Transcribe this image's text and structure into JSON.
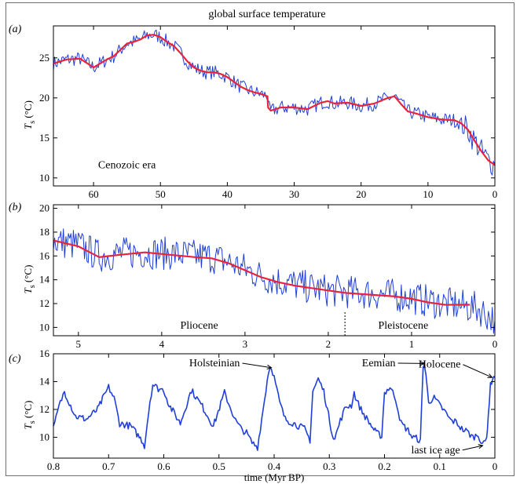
{
  "title": "global surface temperature",
  "colors": {
    "raw": "#1f3fd8",
    "smooth": "#e8243c",
    "axis": "#000000",
    "frame": "#6f6f6f"
  },
  "chart_data": [
    {
      "type": "line",
      "panel_label": "(a)",
      "title": "global surface temperature",
      "xlabel": "",
      "ylabel": "T_s (°C)",
      "ylabel_main": "T",
      "ylabel_sub": "s",
      "ylabel_unit": " (°C)",
      "xlim": [
        66,
        0
      ],
      "ylim": [
        9,
        29
      ],
      "xticks": [
        60,
        50,
        40,
        30,
        20,
        10,
        0
      ],
      "yticks": [
        10,
        15,
        20,
        25
      ],
      "grid": false,
      "annotations": [
        {
          "text": "Cenozoic era",
          "x": 55,
          "y": 11.2
        }
      ],
      "series": [
        {
          "role": "raw",
          "noise": 0.9,
          "x": [
            66,
            64,
            62,
            60,
            58,
            57,
            56,
            55,
            54,
            53,
            52,
            51,
            50,
            49,
            48,
            47,
            46,
            45,
            44,
            43,
            42,
            41,
            40,
            39,
            38,
            37,
            36,
            35,
            34,
            33.9,
            33.5,
            32,
            30,
            28,
            26,
            25,
            24,
            22,
            20,
            18,
            16,
            15,
            14,
            13,
            12,
            10,
            8,
            6,
            5,
            4,
            3,
            2,
            1,
            0
          ],
          "y": [
            24.3,
            24.8,
            24.9,
            23.8,
            24.8,
            25.2,
            26.0,
            26.8,
            27.0,
            27.3,
            27.8,
            27.9,
            27.6,
            27.0,
            26.5,
            25.6,
            24.6,
            23.8,
            23.4,
            23.2,
            23.2,
            23.0,
            22.6,
            22.0,
            21.4,
            21.0,
            20.7,
            20.5,
            20.2,
            18.8,
            18.4,
            18.8,
            18.8,
            18.6,
            19.4,
            19.6,
            19.3,
            19.4,
            19.0,
            19.3,
            20.0,
            20.2,
            19.2,
            18.3,
            18.1,
            17.6,
            17.3,
            17.2,
            16.8,
            16.0,
            14.6,
            13.3,
            12.2,
            11.6
          ]
        },
        {
          "role": "smooth",
          "x": [
            66,
            64,
            62,
            60,
            58,
            57,
            56,
            55,
            54,
            53,
            52,
            51,
            50,
            49,
            48,
            47,
            46,
            45,
            44,
            43,
            42,
            41,
            40,
            39,
            38,
            37,
            36,
            35,
            34,
            33.9,
            33.5,
            32,
            30,
            28,
            26,
            25,
            24,
            22,
            20,
            18,
            16,
            15,
            14,
            13,
            12,
            10,
            8,
            6,
            5,
            4,
            3,
            2,
            1,
            0
          ],
          "y": [
            24.3,
            24.8,
            24.9,
            23.8,
            24.8,
            25.2,
            26.0,
            26.8,
            27.0,
            27.3,
            27.8,
            27.9,
            27.6,
            27.0,
            26.5,
            25.6,
            24.6,
            23.8,
            23.4,
            23.2,
            23.2,
            23.0,
            22.6,
            22.0,
            21.4,
            21.0,
            20.7,
            20.5,
            20.2,
            18.8,
            18.4,
            18.8,
            18.8,
            18.6,
            19.4,
            19.6,
            19.3,
            19.4,
            19.0,
            19.3,
            20.0,
            20.2,
            19.2,
            18.3,
            18.1,
            17.6,
            17.3,
            17.2,
            16.8,
            16.0,
            14.6,
            13.3,
            12.2,
            11.6
          ]
        }
      ]
    },
    {
      "type": "line",
      "panel_label": "(b)",
      "xlabel": "",
      "ylabel": "T_s (°C)",
      "ylabel_main": "T",
      "ylabel_sub": "s",
      "ylabel_unit": " (°C)",
      "xlim": [
        5.3,
        0
      ],
      "ylim": [
        9.3,
        20.3
      ],
      "xticks": [
        5,
        4,
        3,
        2,
        1,
        0
      ],
      "yticks": [
        10,
        12,
        14,
        16,
        18,
        20
      ],
      "grid": false,
      "boundary_x": 1.8,
      "annotations": [
        {
          "text": "Pliocene",
          "x": 3.55,
          "y": 9.9
        },
        {
          "text": "Pleistocene",
          "x": 1.1,
          "y": 9.9
        }
      ],
      "series": [
        {
          "role": "raw",
          "noise": 1.4,
          "x": [
            5.3,
            5.0,
            4.75,
            4.5,
            4.2,
            3.9,
            3.6,
            3.4,
            3.2,
            3.0,
            2.8,
            2.6,
            2.4,
            2.2,
            2.0,
            1.8,
            1.6,
            1.4,
            1.2,
            1.0,
            0.8,
            0.6,
            0.4,
            0.2,
            0.0
          ],
          "y": [
            17.3,
            16.9,
            16.0,
            16.2,
            16.3,
            16.2,
            16.0,
            15.9,
            15.5,
            14.9,
            14.3,
            13.9,
            13.6,
            13.3,
            13.1,
            13.0,
            12.9,
            12.8,
            12.7,
            12.5,
            12.2,
            12.0,
            11.8,
            11.6,
            10.6
          ]
        },
        {
          "role": "smooth",
          "x": [
            5.3,
            5.0,
            4.75,
            4.5,
            4.2,
            3.9,
            3.6,
            3.4,
            3.2,
            3.0,
            2.8,
            2.6,
            2.4,
            2.2,
            2.0,
            1.8,
            1.6,
            1.4,
            1.2,
            1.0,
            0.8,
            0.6,
            0.4,
            0.3
          ],
          "y": [
            17.3,
            16.8,
            15.9,
            16.1,
            16.3,
            16.1,
            15.9,
            15.8,
            15.4,
            14.8,
            14.2,
            13.8,
            13.5,
            13.3,
            13.1,
            12.9,
            12.8,
            12.7,
            12.6,
            12.4,
            12.1,
            11.9,
            11.9,
            11.9
          ]
        }
      ]
    },
    {
      "type": "line",
      "panel_label": "(c)",
      "xlabel": "time (Myr BP)",
      "ylabel": "T_s (°C)",
      "ylabel_main": "T",
      "ylabel_sub": "s",
      "ylabel_unit": " (°C)",
      "xlim": [
        0.8,
        0
      ],
      "ylim": [
        8.5,
        16
      ],
      "xticks": [
        0.8,
        0.7,
        0.6,
        0.5,
        0.4,
        0.3,
        0.2,
        0.1,
        0
      ],
      "xticklabels": [
        "0.8",
        "0.7",
        "0.6",
        "0.5",
        "0.4",
        "0.3",
        "0.2",
        "0.1",
        "0"
      ],
      "yticks": [
        10,
        12,
        14,
        16
      ],
      "grid": false,
      "annotations": [
        {
          "text": "Holsteinian",
          "x": 0.462,
          "y": 15.1,
          "arrow_to": [
            0.405,
            15.0
          ]
        },
        {
          "text": "Eemian",
          "x": 0.18,
          "y": 15.1,
          "arrow_to": [
            0.128,
            15.3
          ]
        },
        {
          "text": "Holocene",
          "x": 0.062,
          "y": 15.0,
          "arrow_to": [
            0.005,
            14.3
          ]
        },
        {
          "text": "last ice age",
          "x": 0.063,
          "y": 8.85,
          "arrow_to": [
            0.022,
            9.4
          ]
        }
      ],
      "series": [
        {
          "role": "raw",
          "noise": 0.25,
          "x": [
            0.8,
            0.79,
            0.78,
            0.76,
            0.74,
            0.72,
            0.7,
            0.69,
            0.68,
            0.66,
            0.64,
            0.635,
            0.625,
            0.62,
            0.61,
            0.6,
            0.59,
            0.57,
            0.55,
            0.54,
            0.53,
            0.51,
            0.49,
            0.48,
            0.47,
            0.46,
            0.45,
            0.44,
            0.43,
            0.42,
            0.41,
            0.405,
            0.4,
            0.39,
            0.38,
            0.36,
            0.345,
            0.335,
            0.33,
            0.32,
            0.31,
            0.295,
            0.29,
            0.28,
            0.27,
            0.26,
            0.255,
            0.25,
            0.24,
            0.23,
            0.215,
            0.205,
            0.2,
            0.19,
            0.18,
            0.17,
            0.155,
            0.15,
            0.14,
            0.135,
            0.13,
            0.128,
            0.125,
            0.12,
            0.11,
            0.1,
            0.09,
            0.08,
            0.07,
            0.06,
            0.05,
            0.04,
            0.03,
            0.025,
            0.02,
            0.015,
            0.012,
            0.008,
            0.004,
            0
          ],
          "y": [
            10.6,
            12.2,
            13.3,
            11.5,
            11.3,
            12.0,
            13.6,
            12.8,
            11.0,
            10.8,
            9.8,
            9.4,
            12.6,
            13.8,
            13.5,
            13.4,
            12.3,
            11.0,
            13.4,
            12.8,
            12.2,
            10.8,
            13.2,
            12.2,
            11.2,
            10.6,
            10.3,
            9.6,
            9.3,
            12.0,
            14.8,
            15.1,
            14.3,
            12.5,
            11.3,
            10.9,
            10.6,
            9.8,
            13.3,
            14.2,
            13.3,
            10.3,
            9.9,
            11.2,
            12.2,
            12.3,
            13.2,
            12.6,
            11.8,
            11.2,
            10.3,
            10.1,
            13.2,
            13.6,
            12.8,
            11.0,
            10.4,
            10.0,
            9.9,
            9.7,
            15.0,
            15.4,
            14.4,
            12.6,
            12.8,
            12.3,
            11.8,
            11.2,
            11.1,
            10.6,
            10.4,
            10.0,
            10.2,
            9.7,
            9.5,
            9.9,
            11.6,
            13.7,
            14.3,
            14.3
          ]
        }
      ]
    }
  ]
}
